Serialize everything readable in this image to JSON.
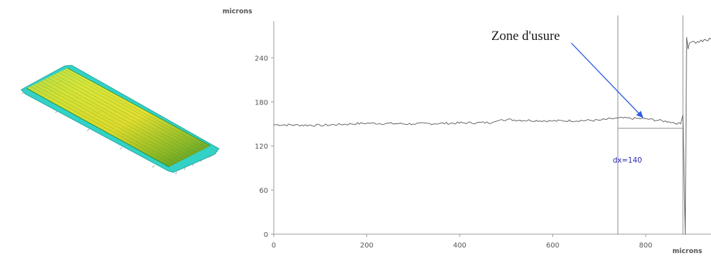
{
  "chart_data": {
    "type": "line",
    "ylabel": "microns",
    "xlabel": "microns",
    "xlim": [
      0,
      960
    ],
    "ylim": [
      0,
      290
    ],
    "x_ticks": [
      "0",
      "200",
      "400",
      "600",
      "800"
    ],
    "y_ticks": [
      "0",
      "60",
      "120",
      "180",
      "240"
    ],
    "grid": false,
    "series": [
      {
        "x": [
          0,
          100,
          200,
          300,
          470,
          490,
          600,
          700,
          740,
          800,
          850,
          875,
          880,
          885,
          888,
          891,
          894,
          900,
          930,
          960
        ],
        "values": [
          149,
          148,
          151,
          150,
          152,
          156,
          154,
          155,
          158,
          157,
          153,
          150,
          162,
          0,
          268,
          252,
          260,
          262,
          264,
          265
        ]
      }
    ],
    "annotations": {
      "zone_label": "Zone d'usure",
      "dx_label": "dx=140",
      "arrow_from": [
        640,
        260
      ],
      "arrow_to": [
        795,
        158
      ],
      "marker_x_left": 740,
      "marker_x_right": 880,
      "dx_line_y": 144
    },
    "line_color": "#555555",
    "arrow_color": "#2f5fe0",
    "dx_color": "#2c2cb4"
  },
  "surface_image": {
    "colors": [
      "#2fd6c9",
      "#e8ec1c",
      "#8fd41f",
      "#4a9e24"
    ]
  }
}
